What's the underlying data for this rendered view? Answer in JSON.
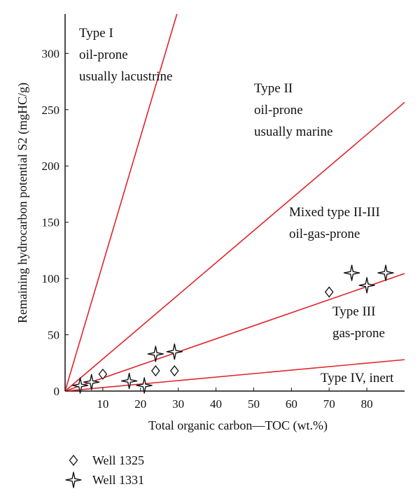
{
  "chart_data": {
    "type": "scatter",
    "title": "",
    "xlabel": "Total organic carbon—TOC (wt.%)",
    "ylabel": "Remaining hydrocarbon potential S2 (mgHC/g)",
    "xlim": [
      0,
      90
    ],
    "ylim": [
      0,
      335
    ],
    "x_ticks": [
      0,
      10,
      20,
      30,
      40,
      50,
      60,
      70,
      80
    ],
    "x_tick_labels": [
      "0",
      "10",
      "20",
      "30",
      "40",
      "50",
      "60",
      "70",
      "80"
    ],
    "y_ticks": [
      0,
      50,
      100,
      150,
      200,
      250,
      300
    ],
    "y_tick_labels": [
      "0",
      "50",
      "100",
      "150",
      "200",
      "250",
      "300"
    ],
    "grid": false,
    "legend_placement": "below-left",
    "line_color": "#e0242b",
    "reference_lines": [
      {
        "name": "Type I",
        "slope": 11.3
      },
      {
        "name": "Type II",
        "slope": 2.85
      },
      {
        "name": "Mixed type II-III",
        "slope": 1.16
      },
      {
        "name": "Type IV",
        "slope": 0.31
      }
    ],
    "annotations": [
      {
        "id": "type1",
        "lines": [
          "Type I",
          "oil-prone",
          "usually lacustrine"
        ]
      },
      {
        "id": "type2",
        "lines": [
          "Type II",
          "oil-prone",
          "usually marine"
        ]
      },
      {
        "id": "type23",
        "lines": [
          "Mixed type II-III",
          "oil-gas-prone"
        ]
      },
      {
        "id": "type3",
        "lines": [
          "Type III",
          "gas-prone"
        ]
      },
      {
        "id": "type4",
        "lines": [
          "Type IV, inert"
        ]
      }
    ],
    "series": [
      {
        "name": "Well 1325",
        "marker": "diamond",
        "points": [
          [
            10,
            15
          ],
          [
            24,
            18
          ],
          [
            29,
            18
          ],
          [
            70,
            88
          ]
        ]
      },
      {
        "name": "Well 1331",
        "marker": "star",
        "points": [
          [
            4,
            5
          ],
          [
            7,
            8
          ],
          [
            17,
            9
          ],
          [
            21,
            5
          ],
          [
            24,
            33
          ],
          [
            29,
            35
          ],
          [
            76,
            105
          ],
          [
            80,
            94
          ],
          [
            85,
            105
          ]
        ]
      }
    ]
  }
}
